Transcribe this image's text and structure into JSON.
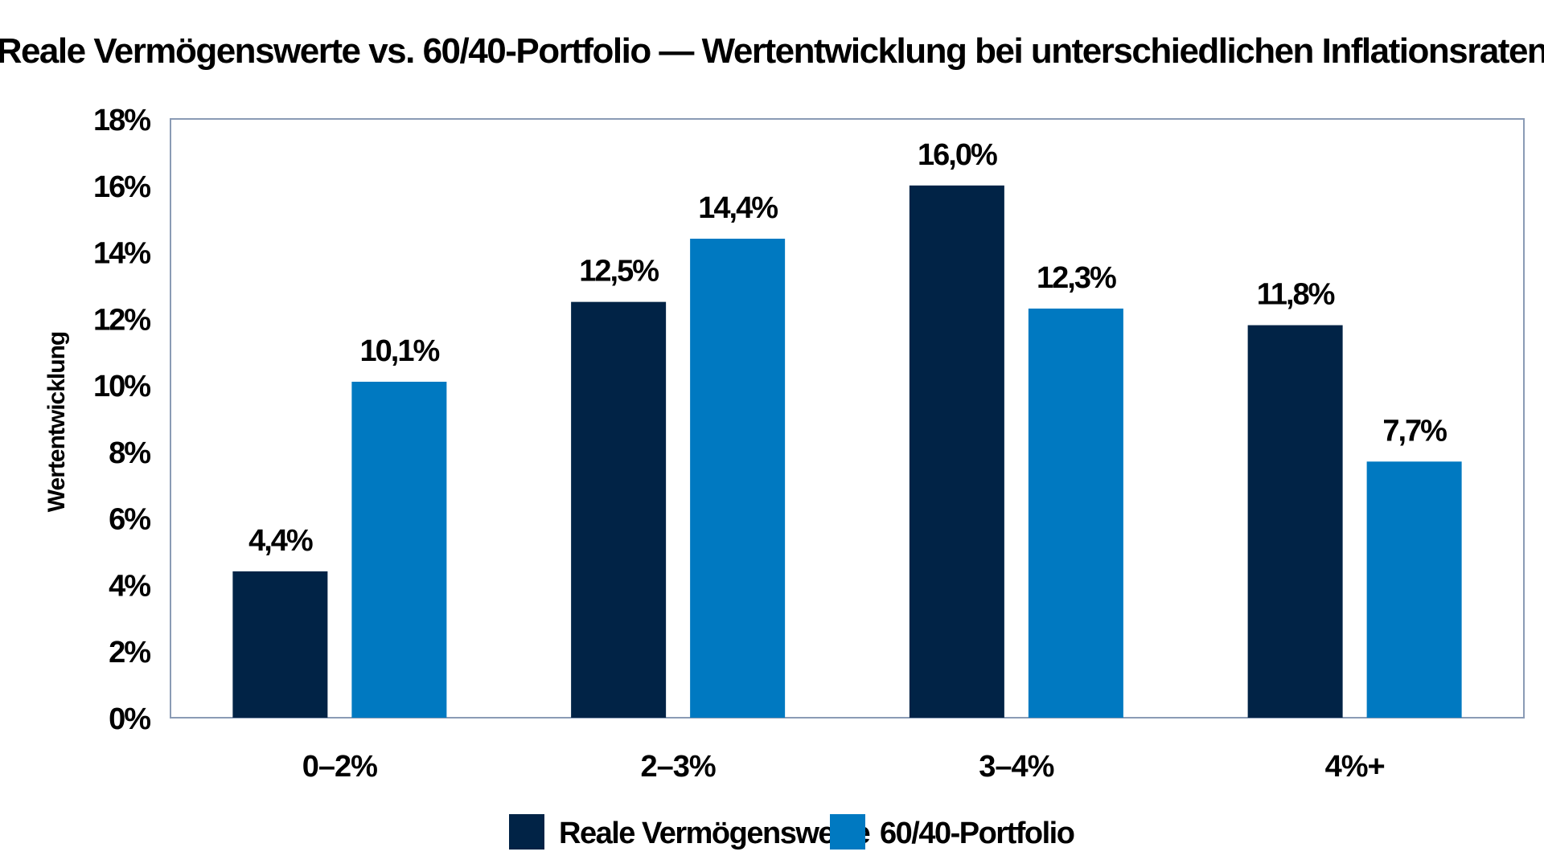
{
  "chart_data": {
    "type": "bar",
    "title": "Reale Vermögenswerte vs. 60/40-Portfolio — Wertentwicklung bei unterschiedlichen Inflationsraten",
    "xlabel": "",
    "ylabel": "Wertentwicklung",
    "categories": [
      "0–2%",
      "2–3%",
      "3–4%",
      "4%+"
    ],
    "series": [
      {
        "name": "Reale Vermögenswerte",
        "color": "#012346",
        "values": [
          4.4,
          12.5,
          16.0,
          11.8
        ],
        "labels": [
          "4,4%",
          "12,5%",
          "16,0%",
          "11,8%"
        ]
      },
      {
        "name": "60/40-Portfolio",
        "color": "#0079c1",
        "values": [
          10.1,
          14.4,
          12.3,
          7.7
        ],
        "labels": [
          "10,1%",
          "14,4%",
          "12,3%",
          "7,7%"
        ]
      }
    ],
    "ylim": [
      0,
      18
    ],
    "yticks": [
      0,
      2,
      4,
      6,
      8,
      10,
      12,
      14,
      16,
      18
    ],
    "ytick_labels": [
      "0%",
      "2%",
      "4%",
      "6%",
      "8%",
      "10%",
      "12%",
      "14%",
      "16%",
      "18%"
    ],
    "grid": false,
    "legend": "bottom-center",
    "frame_color": "#8a9bb5"
  }
}
